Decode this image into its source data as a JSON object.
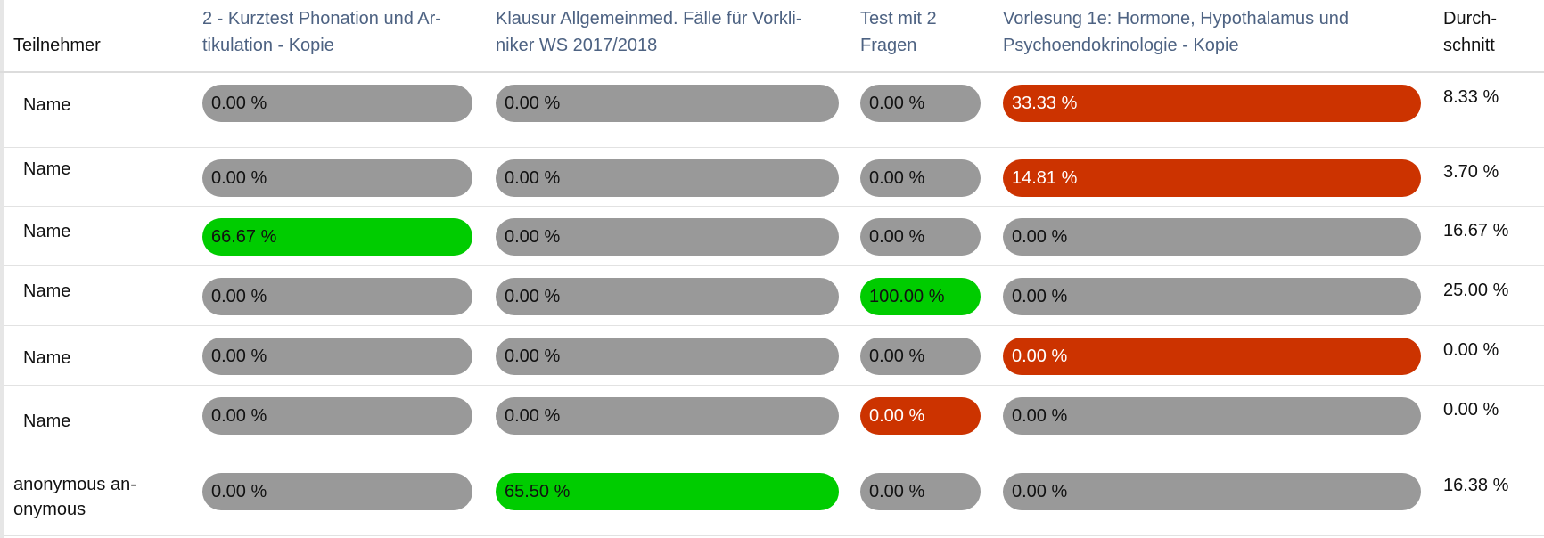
{
  "header": {
    "participant": "Teilnehmer",
    "tests": [
      "2 - Kurztest Phonation und Ar-tikulation - Kopie",
      "Klausur Allgemeinmed. Fälle für Vorkli-niker WS 2017/2018",
      "Test mit 2 Fragen",
      "Vorlesung 1e: Hormone, Hypothalamus und Psychoendokrinologie - Kopie"
    ],
    "tests_lines": [
      [
        "2 - Kurztest Phonation und Ar-",
        "tikulation - Kopie"
      ],
      [
        "Klausur Allgemeinmed. Fälle für Vorkli-",
        "niker WS 2017/2018"
      ],
      [
        "Test mit 2",
        "Fragen"
      ],
      [
        "Vorlesung 1e: Hormone, Hypothalamus und",
        "Psychoendokrinologie - Kopie"
      ]
    ],
    "average_lines": [
      "Durch-",
      "schnitt"
    ]
  },
  "colors": {
    "neutral": "#999999",
    "fail": "#cc3300",
    "pass": "#00cc00",
    "header_link": "#4d6282"
  },
  "rows": [
    {
      "name": "Name",
      "scores": [
        {
          "label": "0.00 %",
          "status": "neutral"
        },
        {
          "label": "0.00 %",
          "status": "neutral"
        },
        {
          "label": "0.00 %",
          "status": "neutral"
        },
        {
          "label": "33.33 %",
          "status": "fail"
        }
      ],
      "average": "8.33 %"
    },
    {
      "name": "Name",
      "scores": [
        {
          "label": "0.00 %",
          "status": "neutral"
        },
        {
          "label": "0.00 %",
          "status": "neutral"
        },
        {
          "label": "0.00 %",
          "status": "neutral"
        },
        {
          "label": "14.81 %",
          "status": "fail"
        }
      ],
      "average": "3.70 %"
    },
    {
      "name": "Name",
      "scores": [
        {
          "label": "66.67 %",
          "status": "pass"
        },
        {
          "label": "0.00 %",
          "status": "neutral"
        },
        {
          "label": "0.00 %",
          "status": "neutral"
        },
        {
          "label": "0.00 %",
          "status": "neutral"
        }
      ],
      "average": "16.67 %"
    },
    {
      "name": "Name",
      "scores": [
        {
          "label": "0.00 %",
          "status": "neutral"
        },
        {
          "label": "0.00 %",
          "status": "neutral"
        },
        {
          "label": "100.00 %",
          "status": "pass"
        },
        {
          "label": "0.00 %",
          "status": "neutral"
        }
      ],
      "average": "25.00 %"
    },
    {
      "name": "Name",
      "scores": [
        {
          "label": "0.00 %",
          "status": "neutral"
        },
        {
          "label": "0.00 %",
          "status": "neutral"
        },
        {
          "label": "0.00 %",
          "status": "neutral"
        },
        {
          "label": "0.00 %",
          "status": "fail"
        }
      ],
      "average": "0.00 %"
    },
    {
      "name": "Name",
      "scores": [
        {
          "label": "0.00 %",
          "status": "neutral"
        },
        {
          "label": "0.00 %",
          "status": "neutral"
        },
        {
          "label": "0.00 %",
          "status": "fail"
        },
        {
          "label": "0.00 %",
          "status": "neutral"
        }
      ],
      "average": "0.00 %"
    },
    {
      "name_lines": [
        "anonymous an-",
        "onymous"
      ],
      "name": "anonymous anonymous",
      "scores": [
        {
          "label": "0.00 %",
          "status": "neutral"
        },
        {
          "label": "65.50 %",
          "status": "pass"
        },
        {
          "label": "0.00 %",
          "status": "neutral"
        },
        {
          "label": "0.00 %",
          "status": "neutral"
        }
      ],
      "average": "16.38 %"
    }
  ]
}
